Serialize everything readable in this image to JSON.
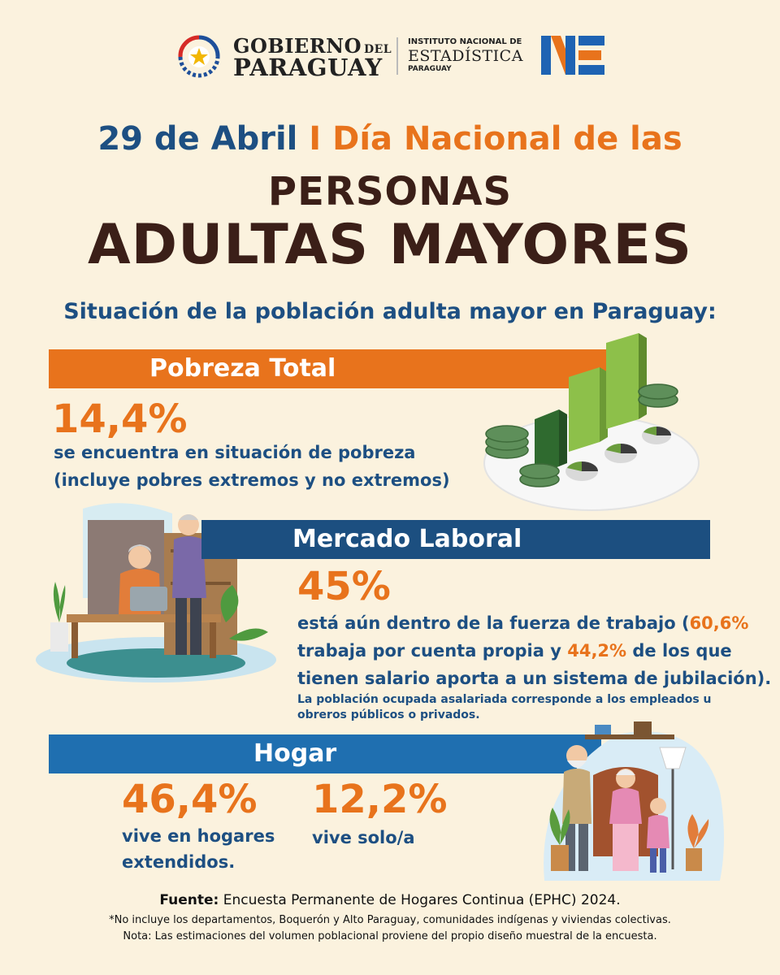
{
  "header": {
    "gov_line1": "GOBIERNO",
    "gov_del": "DEL",
    "gov_line2": "PARAGUAY",
    "ine_line1": "INSTITUTO NACIONAL DE",
    "ine_line2": "ESTADÍSTICA",
    "ine_line3": "PARAGUAY"
  },
  "title": {
    "date": "29 de Abril",
    "separator": "I",
    "line1_rest": "Día Nacional de las",
    "line2": "PERSONAS",
    "line3": "ADULTAS MAYORES"
  },
  "subtitle": "Situación de la población adulta mayor en Paraguay:",
  "pobreza": {
    "label": "Pobreza Total",
    "value": "14,4%",
    "desc1": "se encuentra en situación de pobreza",
    "desc2": "(incluye pobres extremos y no extremos)"
  },
  "laboral": {
    "label": "Mercado Laboral",
    "value": "45%",
    "desc_a": "está aún dentro de la fuerza de trabajo (",
    "desc_b": "60,6%",
    "desc_c": "trabaja por cuenta propia y ",
    "desc_d": "44,2%",
    "desc_e": " de los que",
    "desc_f": "tienen salario aporta a un sistema de jubilación).",
    "note1": "La población ocupada asalariada corresponde a los empleados u",
    "note2": "obreros públicos o privados."
  },
  "hogar": {
    "label": "Hogar",
    "value1": "46,4%",
    "desc1a": "vive en hogares",
    "desc1b": "extendidos.",
    "value2": "12,2%",
    "desc2": "vive solo/a"
  },
  "footer": {
    "source_label": "Fuente:",
    "source_text": "Encuesta Permanente de Hogares Continua (EPHC) 2024.",
    "note1": "*No incluye los departamentos, Boquerón y Alto Paraguay, comunidades indígenas y viviendas colectivas.",
    "note2": "Nota: Las estimaciones del volumen poblacional proviene del propio diseño muestral de la encuesta."
  },
  "colors": {
    "background": "#fbf2de",
    "blue": "#1d4f82",
    "orange": "#e8731c",
    "brown": "#3b1f18",
    "laboral_band": "#1c4f80",
    "hogar_band": "#1f6fb0"
  }
}
